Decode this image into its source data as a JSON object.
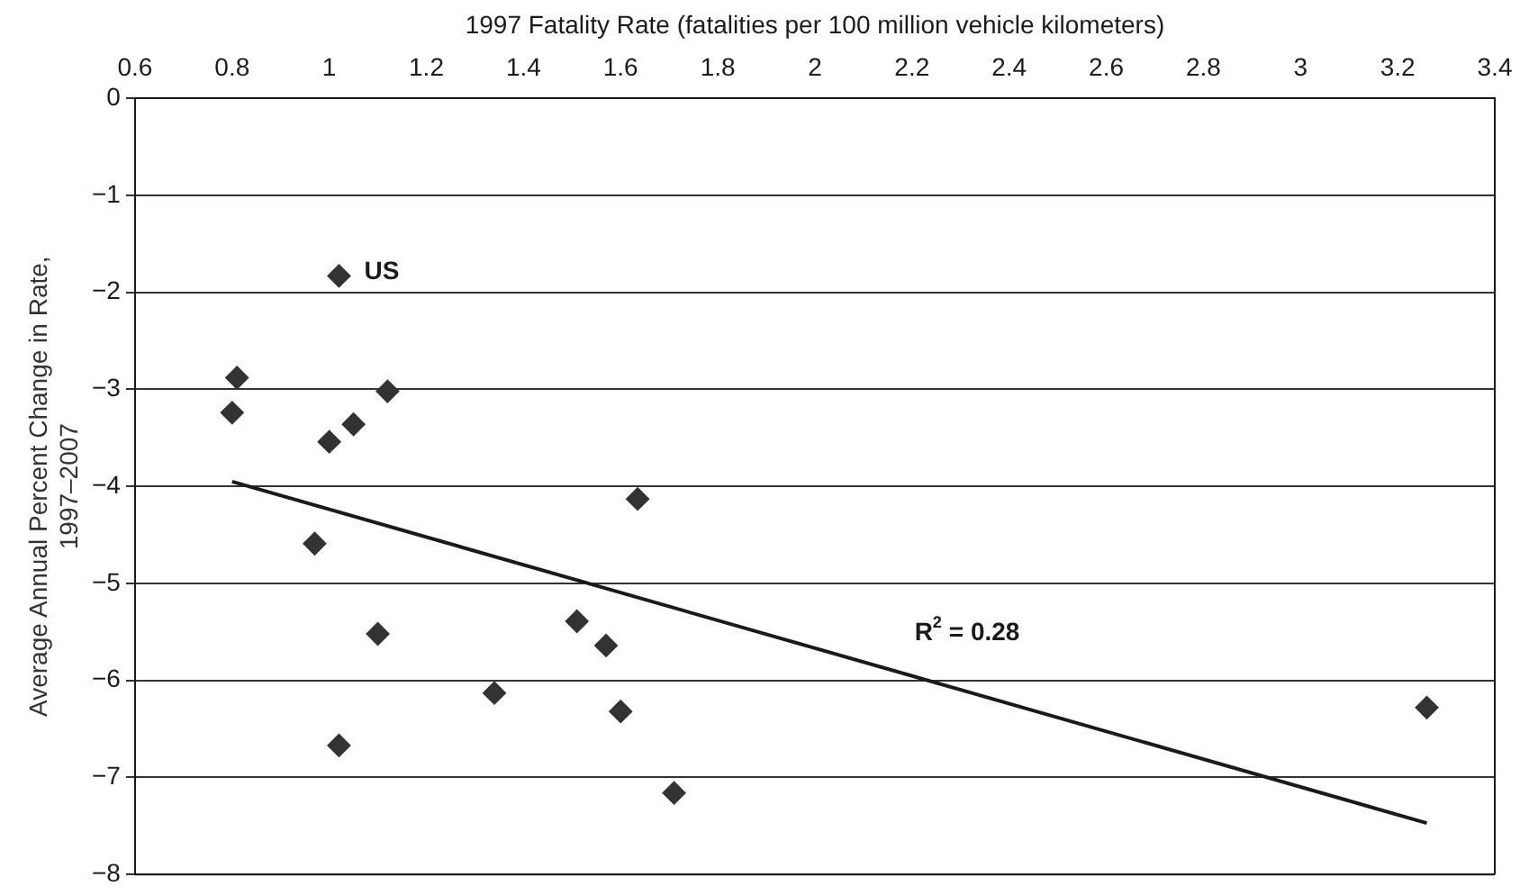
{
  "chart_data": {
    "type": "scatter",
    "xlabel": "1997 Fatality Rate (fatalities per 100 million vehicle kilometers)",
    "ylabel": "Average Annual Percent Change in Rate, 1997–2007",
    "xlim": [
      0.6,
      3.4
    ],
    "xticks": [
      0.6,
      0.8,
      1,
      1.2,
      1.4,
      1.6,
      1.8,
      2,
      2.2,
      2.4,
      2.6,
      2.8,
      3,
      3.2,
      3.4
    ],
    "ylim": [
      -8,
      0
    ],
    "yticks": [
      {
        "value": -8,
        "label": "−8"
      },
      {
        "value": -7,
        "label": "−7"
      },
      {
        "value": -6,
        "label": "−6"
      },
      {
        "value": -5,
        "label": "−5"
      },
      {
        "value": -4,
        "label": "−4"
      },
      {
        "value": -3,
        "label": "−3"
      },
      {
        "value": -2,
        "label": "−2"
      },
      {
        "value": -1,
        "label": "−1"
      },
      0
    ],
    "grid": "y",
    "legend": false,
    "series": [
      {
        "marker": "diamond",
        "color": "#333333",
        "x": [
          1.02,
          0.81,
          0.8,
          1.12,
          1.05,
          1.0,
          0.97,
          1.1,
          1.02,
          1.34,
          1.51,
          1.57,
          1.6,
          1.71,
          1.635,
          3.26
        ],
        "values": [
          -1.83,
          -2.88,
          -3.24,
          -3.02,
          -3.36,
          -3.54,
          -4.59,
          -5.52,
          -6.67,
          -6.13,
          -5.39,
          -5.64,
          -6.32,
          -7.16,
          -4.13,
          -6.28
        ]
      },
      {
        "type": "line",
        "color": "#1a1a1a",
        "line_style": "solid",
        "x": [
          0.8,
          3.26
        ],
        "values": [
          -3.95,
          -7.47
        ]
      }
    ],
    "annotations": [
      {
        "text": "US",
        "x": 1.02,
        "y": -1.83
      },
      "R$^{2}$ = 0.28"
    ]
  }
}
